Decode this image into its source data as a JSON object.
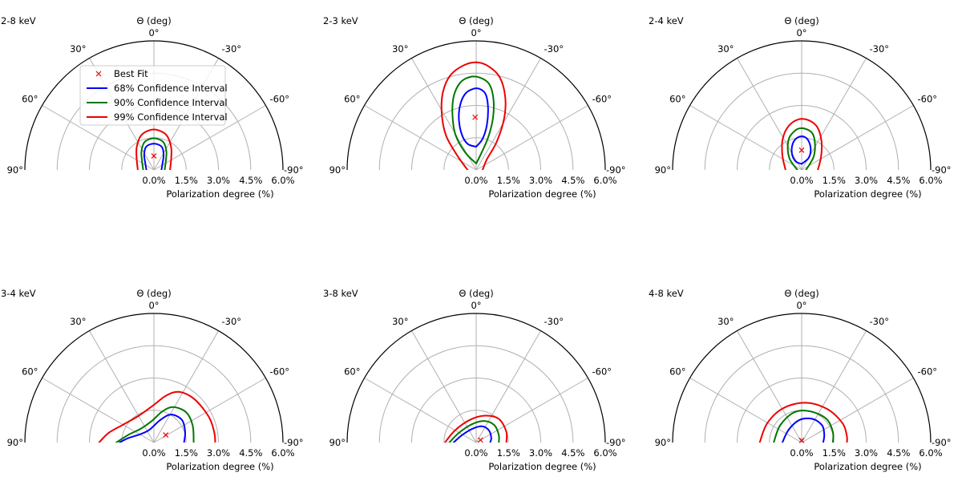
{
  "chart_data": [
    {
      "type": "polar-contour",
      "title": "2-8 keV",
      "theta_label": "Θ (deg)",
      "r_label": "Polarization degree (%)",
      "r_ticks": [
        "0.0%",
        "1.5%",
        "3.0%",
        "4.5%",
        "6.0%"
      ],
      "theta_ticks": [
        "90°",
        "60°",
        "30°",
        "0°",
        "-30°",
        "-60°",
        "-90°"
      ],
      "rlim": [
        0,
        6
      ],
      "thetalim": [
        -90,
        90
      ],
      "grid": true,
      "legend": {
        "placement": "upper-left",
        "entries": [
          "Best Fit",
          "68% Confidence Interval",
          "90% Confidence Interval",
          "99% Confidence Interval"
        ]
      },
      "best_fit": {
        "x": 0.0,
        "y": 0.65
      },
      "contours": [
        {
          "name": "68% Confidence Interval",
          "color": "#0000ff",
          "points": [
            [
              -0.35,
              0
            ],
            [
              -0.4,
              0.3
            ],
            [
              -0.45,
              0.7
            ],
            [
              -0.38,
              1.05
            ],
            [
              -0.15,
              1.2
            ],
            [
              0.15,
              1.2
            ],
            [
              0.38,
              1.05
            ],
            [
              0.45,
              0.7
            ],
            [
              0.4,
              0.3
            ],
            [
              0.35,
              0
            ]
          ]
        },
        {
          "name": "90% Confidence Interval",
          "color": "#007700",
          "points": [
            [
              -0.5,
              0
            ],
            [
              -0.55,
              0.4
            ],
            [
              -0.58,
              0.85
            ],
            [
              -0.45,
              1.28
            ],
            [
              -0.15,
              1.45
            ],
            [
              0.15,
              1.45
            ],
            [
              0.45,
              1.28
            ],
            [
              0.58,
              0.85
            ],
            [
              0.55,
              0.4
            ],
            [
              0.5,
              0
            ]
          ]
        },
        {
          "name": "99% Confidence Interval",
          "color": "#ee0000",
          "points": [
            [
              -0.75,
              0
            ],
            [
              -0.8,
              0.5
            ],
            [
              -0.8,
              1.05
            ],
            [
              -0.6,
              1.6
            ],
            [
              -0.2,
              1.85
            ],
            [
              0.2,
              1.85
            ],
            [
              0.6,
              1.6
            ],
            [
              0.8,
              1.05
            ],
            [
              0.8,
              0.5
            ],
            [
              0.75,
              0
            ]
          ]
        }
      ]
    },
    {
      "type": "polar-contour",
      "title": "2-3 keV",
      "theta_label": "Θ (deg)",
      "r_label": "Polarization degree (%)",
      "r_ticks": [
        "0.0%",
        "1.5%",
        "3.0%",
        "4.5%",
        "6.0%"
      ],
      "theta_ticks": [
        "90°",
        "60°",
        "30°",
        "0°",
        "-30°",
        "-60°",
        "-90°"
      ],
      "rlim": [
        0,
        6
      ],
      "thetalim": [
        -90,
        90
      ],
      "grid": true,
      "best_fit": {
        "x": -0.05,
        "y": 2.45
      },
      "contours": [
        {
          "name": "68% Confidence Interval",
          "color": "#0000ff",
          "points": [
            [
              0,
              1.08
            ],
            [
              -0.38,
              1.2
            ],
            [
              -0.65,
              1.6
            ],
            [
              -0.8,
              2.3
            ],
            [
              -0.75,
              3.0
            ],
            [
              -0.5,
              3.55
            ],
            [
              -0.1,
              3.78
            ],
            [
              0.2,
              3.75
            ],
            [
              0.45,
              3.5
            ],
            [
              0.55,
              2.9
            ],
            [
              0.5,
              2.1
            ],
            [
              0.3,
              1.45
            ],
            [
              0,
              1.08
            ]
          ]
        },
        {
          "name": "90% Confidence Interval",
          "color": "#007700",
          "points": [
            [
              0,
              0.3
            ],
            [
              -0.5,
              0.8
            ],
            [
              -0.95,
              1.6
            ],
            [
              -1.1,
              2.5
            ],
            [
              -1.05,
              3.4
            ],
            [
              -0.75,
              4.05
            ],
            [
              -0.3,
              4.32
            ],
            [
              0.15,
              4.3
            ],
            [
              0.6,
              4.0
            ],
            [
              0.8,
              3.3
            ],
            [
              0.78,
              2.4
            ],
            [
              0.55,
              1.5
            ],
            [
              0.2,
              0.7
            ],
            [
              0,
              0.3
            ]
          ]
        },
        {
          "name": "99% Confidence Interval",
          "color": "#ee0000",
          "points": [
            [
              -0.4,
              0
            ],
            [
              -0.9,
              0.7
            ],
            [
              -1.4,
              1.6
            ],
            [
              -1.6,
              2.6
            ],
            [
              -1.55,
              3.6
            ],
            [
              -1.2,
              4.4
            ],
            [
              -0.55,
              4.88
            ],
            [
              0.05,
              5.0
            ],
            [
              0.6,
              4.8
            ],
            [
              1.1,
              4.3
            ],
            [
              1.35,
              3.4
            ],
            [
              1.3,
              2.4
            ],
            [
              0.95,
              1.3
            ],
            [
              0.5,
              0.5
            ],
            [
              0.3,
              0
            ]
          ]
        }
      ]
    },
    {
      "type": "polar-contour",
      "title": "2-4 keV",
      "theta_label": "Θ (deg)",
      "r_label": "Polarization degree (%)",
      "r_ticks": [
        "0.0%",
        "1.5%",
        "3.0%",
        "4.5%",
        "6.0%"
      ],
      "theta_ticks": [
        "90°",
        "60°",
        "30°",
        "0°",
        "-30°",
        "-60°",
        "-90°"
      ],
      "rlim": [
        0,
        6
      ],
      "thetalim": [
        -90,
        90
      ],
      "grid": true,
      "best_fit": {
        "x": 0.0,
        "y": 0.92
      },
      "contours": [
        {
          "name": "68% Confidence Interval",
          "color": "#0000ff",
          "points": [
            [
              0,
              0.28
            ],
            [
              -0.28,
              0.4
            ],
            [
              -0.45,
              0.75
            ],
            [
              -0.42,
              1.2
            ],
            [
              -0.2,
              1.5
            ],
            [
              0.1,
              1.55
            ],
            [
              0.32,
              1.35
            ],
            [
              0.42,
              0.95
            ],
            [
              0.32,
              0.55
            ],
            [
              0,
              0.28
            ]
          ]
        },
        {
          "name": "90% Confidence Interval",
          "color": "#007700",
          "points": [
            [
              -0.2,
              0
            ],
            [
              -0.55,
              0.5
            ],
            [
              -0.65,
              1.05
            ],
            [
              -0.55,
              1.55
            ],
            [
              -0.2,
              1.9
            ],
            [
              0.15,
              1.92
            ],
            [
              0.5,
              1.7
            ],
            [
              0.62,
              1.2
            ],
            [
              0.55,
              0.6
            ],
            [
              0.2,
              0
            ]
          ]
        },
        {
          "name": "99% Confidence Interval",
          "color": "#ee0000",
          "points": [
            [
              -0.75,
              0
            ],
            [
              -0.9,
              0.7
            ],
            [
              -0.88,
              1.45
            ],
            [
              -0.6,
              2.05
            ],
            [
              -0.15,
              2.35
            ],
            [
              0.3,
              2.32
            ],
            [
              0.72,
              2.0
            ],
            [
              0.92,
              1.35
            ],
            [
              0.9,
              0.6
            ],
            [
              0.75,
              0
            ]
          ]
        }
      ]
    },
    {
      "type": "polar-contour",
      "title": "3-4 keV",
      "theta_label": "Θ (deg)",
      "r_label": "Polarization degree (%)",
      "r_ticks": [
        "0.0%",
        "1.5%",
        "3.0%",
        "4.5%",
        "6.0%"
      ],
      "theta_ticks": [
        "90°",
        "60°",
        "30°",
        "0°",
        "-30°",
        "-60°",
        "-90°"
      ],
      "rlim": [
        0,
        6
      ],
      "thetalim": [
        -90,
        90
      ],
      "grid": true,
      "best_fit": {
        "x": 0.55,
        "y": 0.35
      },
      "contours": [
        {
          "name": "68% Confidence Interval",
          "color": "#0000ff",
          "points": [
            [
              -1.6,
              0
            ],
            [
              -1.2,
              0.2
            ],
            [
              -0.6,
              0.4
            ],
            [
              -0.2,
              0.6
            ],
            [
              0.3,
              1.05
            ],
            [
              0.8,
              1.3
            ],
            [
              1.3,
              1.05
            ],
            [
              1.45,
              0.5
            ],
            [
              1.4,
              0
            ]
          ]
        },
        {
          "name": "90% Confidence Interval",
          "color": "#007700",
          "points": [
            [
              -1.75,
              0
            ],
            [
              -1.2,
              0.35
            ],
            [
              -0.6,
              0.65
            ],
            [
              -0.1,
              1.0
            ],
            [
              0.4,
              1.45
            ],
            [
              0.9,
              1.65
            ],
            [
              1.5,
              1.4
            ],
            [
              1.8,
              0.8
            ],
            [
              1.85,
              0
            ]
          ]
        },
        {
          "name": "99% Confidence Interval",
          "color": "#ee0000",
          "points": [
            [
              -2.55,
              0
            ],
            [
              -2.1,
              0.45
            ],
            [
              -1.4,
              0.85
            ],
            [
              -0.7,
              1.25
            ],
            [
              0,
              1.75
            ],
            [
              0.6,
              2.2
            ],
            [
              1.2,
              2.35
            ],
            [
              1.9,
              2.0
            ],
            [
              2.55,
              1.2
            ],
            [
              2.8,
              0.5
            ],
            [
              2.85,
              0
            ]
          ]
        }
      ]
    },
    {
      "type": "polar-contour",
      "title": "3-8 keV",
      "theta_label": "Θ (deg)",
      "r_label": "Polarization degree (%)",
      "r_ticks": [
        "0.0%",
        "1.5%",
        "3.0%",
        "4.5%",
        "6.0%"
      ],
      "theta_ticks": [
        "90°",
        "60°",
        "30°",
        "0°",
        "-30°",
        "-60°",
        "-90°"
      ],
      "rlim": [
        0,
        6
      ],
      "thetalim": [
        -90,
        90
      ],
      "grid": true,
      "best_fit": {
        "x": 0.2,
        "y": 0.12
      },
      "contours": [
        {
          "name": "68% Confidence Interval",
          "color": "#0000ff",
          "points": [
            [
              -1.05,
              0
            ],
            [
              -0.65,
              0.35
            ],
            [
              -0.15,
              0.65
            ],
            [
              0.3,
              0.75
            ],
            [
              0.6,
              0.55
            ],
            [
              0.7,
              0.2
            ],
            [
              0.65,
              0
            ]
          ]
        },
        {
          "name": "90% Confidence Interval",
          "color": "#007700",
          "points": [
            [
              -1.25,
              0
            ],
            [
              -0.8,
              0.45
            ],
            [
              -0.2,
              0.85
            ],
            [
              0.4,
              1.0
            ],
            [
              0.85,
              0.8
            ],
            [
              1.05,
              0.35
            ],
            [
              1.05,
              0
            ]
          ]
        },
        {
          "name": "99% Confidence Interval",
          "color": "#ee0000",
          "points": [
            [
              -1.45,
              0
            ],
            [
              -1.0,
              0.55
            ],
            [
              -0.3,
              1.05
            ],
            [
              0.4,
              1.25
            ],
            [
              1.05,
              1.1
            ],
            [
              1.4,
              0.5
            ],
            [
              1.4,
              0
            ]
          ]
        }
      ]
    },
    {
      "type": "polar-contour",
      "title": "4-8 keV",
      "theta_label": "Θ (deg)",
      "r_label": "Polarization degree (%)",
      "r_ticks": [
        "0.0%",
        "1.5%",
        "3.0%",
        "4.5%",
        "6.0%"
      ],
      "theta_ticks": [
        "90°",
        "60°",
        "30°",
        "0°",
        "-30°",
        "-60°",
        "-90°"
      ],
      "rlim": [
        0,
        6
      ],
      "thetalim": [
        -90,
        90
      ],
      "grid": true,
      "best_fit": {
        "x": 0.0,
        "y": 0.1
      },
      "contours": [
        {
          "name": "68% Confidence Interval",
          "color": "#0000ff",
          "points": [
            [
              -0.9,
              0
            ],
            [
              -0.6,
              0.6
            ],
            [
              -0.1,
              1.05
            ],
            [
              0.5,
              1.1
            ],
            [
              0.95,
              0.8
            ],
            [
              1.05,
              0.35
            ],
            [
              1.0,
              0
            ]
          ]
        },
        {
          "name": "90% Confidence Interval",
          "color": "#007700",
          "points": [
            [
              -1.3,
              0
            ],
            [
              -1.0,
              0.8
            ],
            [
              -0.35,
              1.4
            ],
            [
              0.4,
              1.45
            ],
            [
              1.15,
              1.1
            ],
            [
              1.45,
              0.5
            ],
            [
              1.45,
              0
            ]
          ]
        },
        {
          "name": "99% Confidence Interval",
          "color": "#ee0000",
          "points": [
            [
              -1.95,
              0
            ],
            [
              -1.6,
              0.9
            ],
            [
              -0.85,
              1.6
            ],
            [
              0.2,
              1.85
            ],
            [
              1.2,
              1.55
            ],
            [
              1.9,
              0.9
            ],
            [
              2.1,
              0.3
            ],
            [
              2.1,
              0
            ]
          ]
        }
      ]
    }
  ]
}
